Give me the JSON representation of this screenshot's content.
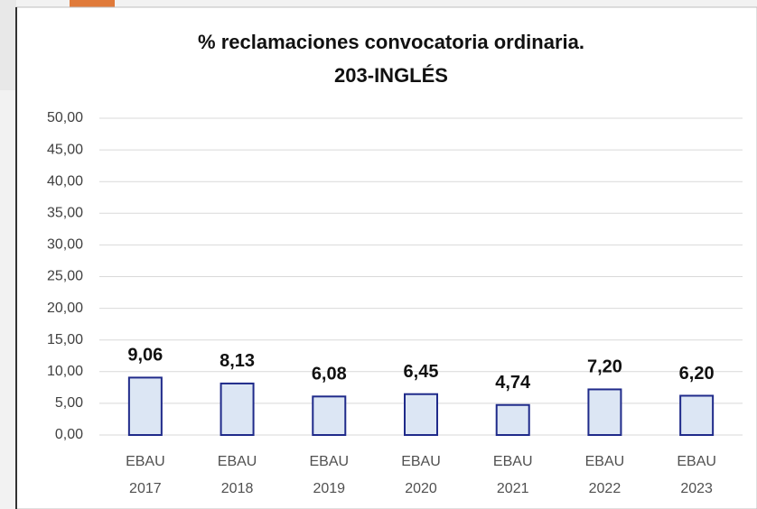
{
  "chart_data": {
    "type": "bar",
    "title": "% reclamaciones convocatoria ordinaria.",
    "subtitle": "203-INGLÉS",
    "categories": [
      "EBAU 2017",
      "EBAU 2018",
      "EBAU 2019",
      "EBAU 2020",
      "EBAU 2021",
      "EBAU 2022",
      "EBAU 2023"
    ],
    "values": [
      9.06,
      8.13,
      6.08,
      6.45,
      4.74,
      7.2,
      6.2
    ],
    "value_labels": [
      "9,06",
      "8,13",
      "6,08",
      "6,45",
      "4,74",
      "7,20",
      "6,20"
    ],
    "color": "#dce6f4",
    "edge_color": "#1f2a8a",
    "ylim": [
      0,
      50
    ],
    "yticks": [
      {
        "value": 0,
        "label": "0,00"
      },
      {
        "value": 5,
        "label": "5,00"
      },
      {
        "value": 10,
        "label": "10,00"
      },
      {
        "value": 15,
        "label": "15,00"
      },
      {
        "value": 20,
        "label": "20,00"
      },
      {
        "value": 25,
        "label": "25,00"
      },
      {
        "value": 30,
        "label": "30,00"
      },
      {
        "value": 35,
        "label": "35,00"
      },
      {
        "value": 40,
        "label": "40,00"
      },
      {
        "value": 45,
        "label": "45,00"
      },
      {
        "value": 50,
        "label": "50,00"
      }
    ],
    "grid": true
  }
}
